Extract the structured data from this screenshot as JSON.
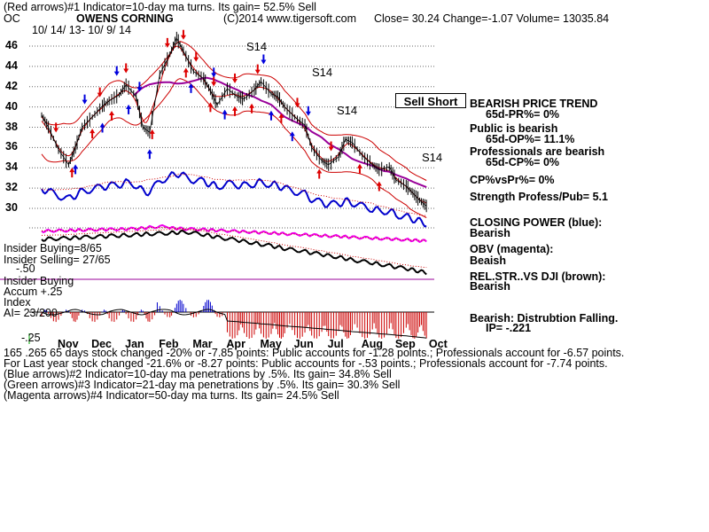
{
  "header": {
    "line1": "(Red arrows)#1 Indicator=10-day ma turns. Its gain= 52.5% Sell",
    "ticker": "OC",
    "company": "OWENS CORNING",
    "copyright": "(C)2014 www.tigersoft.com",
    "quote": "Close=  30.24  Change=-1.07  Volume= 13035.84",
    "date_range": "10/ 14/ 13- 10/ 9/ 14"
  },
  "sell_button_label": "Sell Short",
  "right_panel": [
    {
      "text": "BEARISH PRICE TREND",
      "indent": false
    },
    {
      "text": "65d-PR%= 0%",
      "indent": true
    },
    {
      "text": "Public is bearish",
      "indent": false
    },
    {
      "text": "65d-OP%= 11.1%",
      "indent": true
    },
    {
      "text": "Professionals are bearish",
      "indent": false
    },
    {
      "text": "65d-CP%= 0%",
      "indent": true
    },
    {
      "text": "CP%vsPr%=  0%",
      "indent": false
    },
    {
      "text": "Strength Profess/Pub= 5.1",
      "indent": false
    },
    {
      "text": "CLOSING POWER (blue):",
      "indent": false
    },
    {
      "text": "Bearish",
      "indent": false
    },
    {
      "text": "OBV (magenta):",
      "indent": false
    },
    {
      "text": "Beaish",
      "indent": false
    },
    {
      "text": "REL.STR..VS DJI (brown):",
      "indent": false
    },
    {
      "text": "Bearish",
      "indent": false
    },
    {
      "text": "Bearish: Distrubtion Falling.",
      "indent": false
    },
    {
      "text": "IP= -.221",
      "indent": true
    }
  ],
  "left_labels": {
    "insider_buying_ratio": "Insider Buying=8/65",
    "insider_selling": "Insider Selling= 27/65",
    "minus50": "-.50",
    "insider_buying": "Insider Buying",
    "accum": "Accum  +.25",
    "index": "Index",
    "ai": "AI= 23/200",
    "minus25": "-.25"
  },
  "signal_labels": [
    "S14",
    "S14",
    "S14",
    "S14"
  ],
  "footer": [
    "165 .265 65 days stock changed -20% or -7.85 points:  Public accounts for -1.28 points.;  Professionals account for -6.57 points.",
    "For Last year stock changed -21.6% or -8.27 points:  Public accounts for -.53 points.;  Professionals account for -7.74 points.",
    "(Blue arrows)#2 Indicator=10-day ma penetrations by .5%. Its gain= 34.8% Sell",
    "(Green arrows)#3 Indicator=21-day ma penetrations by .5%. Its gain= 30.3% Sell",
    "(Magenta arrows)#4 Indicator=50-day ma turns. Its gain= 24.5% Sell"
  ],
  "chart_data": {
    "type": "line",
    "title": "OWENS CORNING",
    "y_axis": {
      "ticks": [
        30,
        32,
        34,
        36,
        38,
        40,
        42,
        44,
        46
      ],
      "ylim": [
        29,
        47.5
      ]
    },
    "x_axis": {
      "ticks": [
        "Nov",
        "Dec",
        "Jan",
        "Feb",
        "Mar",
        "Apr",
        "May",
        "Jun",
        "Jul",
        "Aug",
        "Sep",
        "Oct"
      ]
    },
    "grid": true,
    "series": [
      {
        "label": "Price",
        "x_months": [
          0.0,
          0.2,
          0.5,
          0.8,
          1.0,
          1.2,
          1.5,
          1.8,
          2.0,
          2.3,
          2.5,
          2.8,
          3.0,
          3.2,
          3.5,
          3.8,
          4.0,
          4.2,
          4.5,
          4.8,
          5.0,
          5.2,
          5.5,
          5.8,
          6.0,
          6.3,
          6.5,
          6.8,
          7.0,
          7.2,
          7.5,
          7.8,
          8.0,
          8.3,
          8.5,
          8.8,
          9.0,
          9.2,
          9.5,
          9.8,
          10.0,
          10.3,
          10.5,
          10.8,
          11.0,
          11.2,
          11.4
        ],
        "values": [
          39.2,
          38.0,
          35.8,
          34.3,
          36.0,
          38.0,
          39.0,
          40.1,
          40.6,
          41.2,
          42.2,
          41.0,
          38.0,
          37.5,
          43.2,
          45.2,
          46.8,
          45.5,
          43.5,
          42.8,
          41.6,
          40.2,
          41.8,
          41.0,
          40.8,
          41.7,
          42.5,
          41.3,
          41.0,
          40.0,
          39.0,
          38.2,
          36.0,
          34.7,
          34.3,
          35.1,
          36.8,
          36.5,
          35.2,
          34.3,
          33.8,
          34.1,
          32.8,
          32.2,
          31.5,
          30.8,
          30.24
        ]
      }
    ],
    "signals": {
      "red_down_arrows_months": [
        0.4,
        1.7,
        2.5,
        3.7,
        4.2,
        4.6,
        5.1,
        5.7,
        6.4,
        7.6,
        8.6
      ],
      "blue_down_arrows_months": [
        1.3,
        2.2,
        2.9,
        5.1,
        6.6,
        7.9
      ],
      "red_up_arrows_months": [
        0.9,
        1.5,
        2.1,
        3.3,
        4.3,
        5.0,
        5.7,
        6.2,
        7.1,
        8.2,
        9.4,
        10.0
      ],
      "blue_up_arrows_months": [
        1.0,
        1.8,
        2.6,
        3.2,
        4.4,
        5.4,
        6.8,
        7.4
      ]
    }
  }
}
